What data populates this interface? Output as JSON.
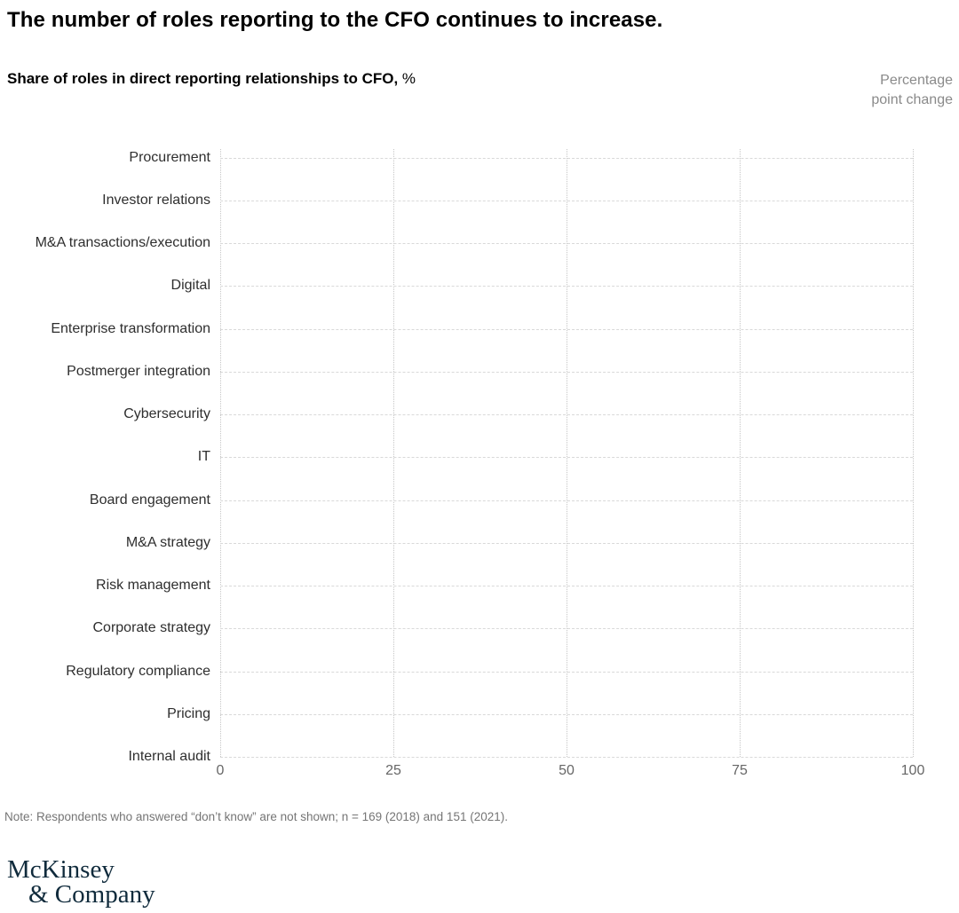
{
  "title": "The number of roles reporting to the CFO continues to increase.",
  "subtitle": {
    "text": "Share of roles in direct reporting relationships to CFO,",
    "unit": " %"
  },
  "secondary_axis_label": {
    "line1": "Percentage",
    "line2": "point change"
  },
  "chart_data": {
    "type": "bar",
    "orientation": "horizontal",
    "title": "The number of roles reporting to the CFO continues to increase.",
    "subtitle": "Share of roles in direct reporting relationships to CFO, %",
    "secondary_axis_label": "Percentage point change",
    "categories": [
      "Procurement",
      "Investor relations",
      "M&A transactions/execution",
      "Digital",
      "Enterprise transformation",
      "Postmerger integration",
      "Cybersecurity",
      "IT",
      "Board engagement",
      "M&A strategy",
      "Risk management",
      "Corporate strategy",
      "Regulatory compliance",
      "Pricing",
      "Internal audit"
    ],
    "series": [],
    "x_ticks": [
      "0",
      "25",
      "50",
      "75",
      "100"
    ],
    "xlim": [
      0,
      100
    ],
    "grid": {
      "horizontal": "dashed",
      "vertical": "dotted"
    },
    "legend": "none",
    "note": "Note: Respondents who answered “don’t know” are not shown; n = 169 (2018) and 151 (2021)."
  },
  "note": "Note: Respondents who answered “don’t know” are not shown; n = 169 (2018) and 151 (2021).",
  "logo": {
    "line1": "McKinsey",
    "line2": "& Company"
  },
  "colors": {
    "title": "#000000",
    "category_label": "#2e2e2e",
    "tick_label": "#666666",
    "muted_label": "#8a8a8a",
    "note": "#757575",
    "gridline_h": "#d9d9d9",
    "gridline_v": "#c6c6c6",
    "logo": "#102b3c",
    "background": "#ffffff"
  }
}
